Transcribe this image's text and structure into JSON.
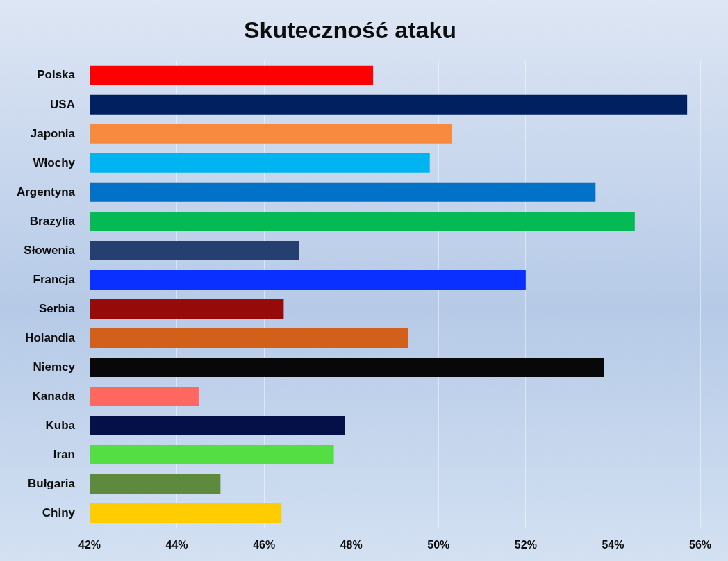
{
  "chart_data": {
    "type": "bar",
    "title": "Skuteczność ataku",
    "orientation": "horizontal",
    "categories": [
      "Polska",
      "USA",
      "Japonia",
      "Włochy",
      "Argentyna",
      "Brazylia",
      "Słowenia",
      "Francja",
      "Serbia",
      "Holandia",
      "Niemcy",
      "Kanada",
      "Kuba",
      "Iran",
      "Bułgaria",
      "Chiny"
    ],
    "values": [
      48.5,
      55.7,
      50.3,
      49.8,
      53.6,
      54.5,
      46.8,
      52.0,
      46.45,
      49.3,
      53.8,
      44.5,
      47.85,
      47.6,
      45.0,
      46.4
    ],
    "colors": [
      "#ff0000",
      "#002060",
      "#f88a40",
      "#00b4f2",
      "#0272c8",
      "#05b955",
      "#243f70",
      "#0a30ff",
      "#960a0a",
      "#d2601a",
      "#080808",
      "#ff6860",
      "#050f48",
      "#55dd44",
      "#5e8a3e",
      "#ffcc00"
    ],
    "xlim": [
      42,
      56
    ],
    "xticks": [
      {
        "value": 42,
        "label": "42%"
      },
      {
        "value": 44,
        "label": "44%"
      },
      {
        "value": 46,
        "label": "46%"
      },
      {
        "value": 48,
        "label": "48%"
      },
      {
        "value": 50,
        "label": "50%"
      },
      {
        "value": 52,
        "label": "52%"
      },
      {
        "value": 54,
        "label": "54%"
      },
      {
        "value": 56,
        "label": "56%"
      }
    ],
    "grid": "x"
  }
}
